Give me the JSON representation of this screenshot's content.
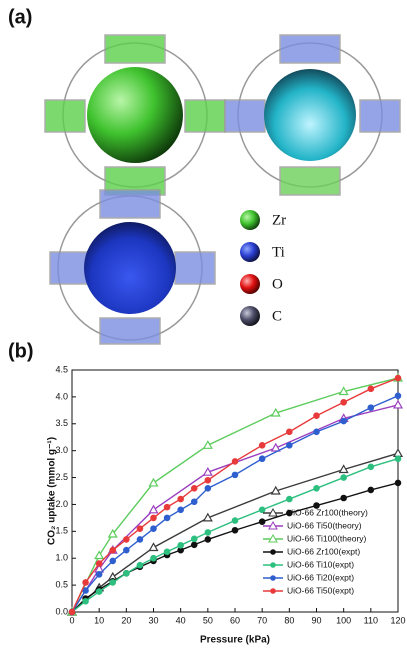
{
  "panel_a": {
    "label": "(a)",
    "legend": [
      "Zr",
      "Ti",
      "O",
      "C"
    ]
  },
  "chart_data": {
    "type": "line",
    "panel_label": "(b)",
    "x_label": "Pressure (kPa)",
    "y_label": "CO₂ uptake (mmol g⁻¹)",
    "xlim": [
      0,
      120
    ],
    "xticks": [
      0,
      10,
      20,
      30,
      40,
      50,
      60,
      70,
      80,
      90,
      100,
      110,
      120
    ],
    "ylim": [
      0,
      4.5
    ],
    "yticks": [
      {
        "value": 0,
        "label": "0.0"
      },
      0.5,
      {
        "value": 1,
        "label": "1.0"
      },
      1.5,
      {
        "value": 2,
        "label": "2.0"
      },
      2.5,
      {
        "value": 3,
        "label": "3.0"
      },
      3.5,
      {
        "value": 4,
        "label": "4.0"
      },
      4.5
    ],
    "legend": "lower right",
    "series": [
      {
        "name": "UiO-66 Zr100(theory)",
        "color": "#3a3a3a",
        "marker": "open-triangle",
        "x": [
          0,
          10,
          15,
          30,
          50,
          75,
          100,
          120
        ],
        "values": [
          0,
          0.45,
          0.65,
          1.2,
          1.75,
          2.25,
          2.65,
          2.95
        ]
      },
      {
        "name": "UiO-66 Ti50(theory)",
        "color": "#9b3fbf",
        "marker": "open-triangle",
        "x": [
          0,
          10,
          15,
          30,
          50,
          75,
          100,
          120
        ],
        "values": [
          0,
          0.8,
          1.15,
          1.9,
          2.6,
          3.05,
          3.6,
          3.85
        ]
      },
      {
        "name": "UiO-66 Ti100(theory)",
        "color": "#5ccc5c",
        "marker": "open-triangle",
        "x": [
          0,
          10,
          15,
          30,
          50,
          75,
          100,
          120
        ],
        "values": [
          0,
          1.05,
          1.45,
          2.4,
          3.1,
          3.7,
          4.1,
          4.35
        ]
      },
      {
        "name": "UiO-66 Zr100(expt)",
        "color": "#111111",
        "marker": "circle",
        "x": [
          0,
          5,
          10,
          15,
          20,
          25,
          30,
          35,
          40,
          45,
          50,
          60,
          70,
          80,
          90,
          100,
          110,
          120
        ],
        "values": [
          0,
          0.25,
          0.42,
          0.57,
          0.72,
          0.84,
          0.95,
          1.06,
          1.15,
          1.25,
          1.35,
          1.52,
          1.68,
          1.84,
          1.98,
          2.12,
          2.27,
          2.4
        ]
      },
      {
        "name": "UiO-66 Ti10(expt)",
        "color": "#2dbf7f",
        "marker": "circle",
        "x": [
          0,
          5,
          10,
          15,
          20,
          25,
          30,
          35,
          40,
          45,
          50,
          60,
          70,
          80,
          90,
          100,
          110,
          120
        ],
        "values": [
          0,
          0.2,
          0.38,
          0.55,
          0.72,
          0.87,
          1.0,
          1.12,
          1.24,
          1.36,
          1.48,
          1.7,
          1.9,
          2.1,
          2.3,
          2.5,
          2.7,
          2.85
        ]
      },
      {
        "name": "UiO-66 Ti20(expt)",
        "color": "#2f5fcf",
        "marker": "circle",
        "x": [
          0,
          5,
          10,
          15,
          20,
          25,
          30,
          35,
          40,
          45,
          50,
          60,
          70,
          80,
          90,
          100,
          110,
          120
        ],
        "values": [
          0,
          0.4,
          0.7,
          0.95,
          1.15,
          1.35,
          1.55,
          1.75,
          1.9,
          2.05,
          2.3,
          2.55,
          2.85,
          3.1,
          3.35,
          3.55,
          3.8,
          4.02
        ]
      },
      {
        "name": "UiO-66 Ti50(expt)",
        "color": "#e83a3a",
        "marker": "circle",
        "x": [
          0,
          5,
          10,
          15,
          20,
          25,
          30,
          35,
          40,
          45,
          50,
          60,
          70,
          80,
          90,
          100,
          110,
          120
        ],
        "values": [
          0,
          0.55,
          0.9,
          1.15,
          1.35,
          1.55,
          1.75,
          1.95,
          2.1,
          2.3,
          2.45,
          2.8,
          3.1,
          3.35,
          3.65,
          3.9,
          4.15,
          4.35
        ]
      }
    ]
  }
}
